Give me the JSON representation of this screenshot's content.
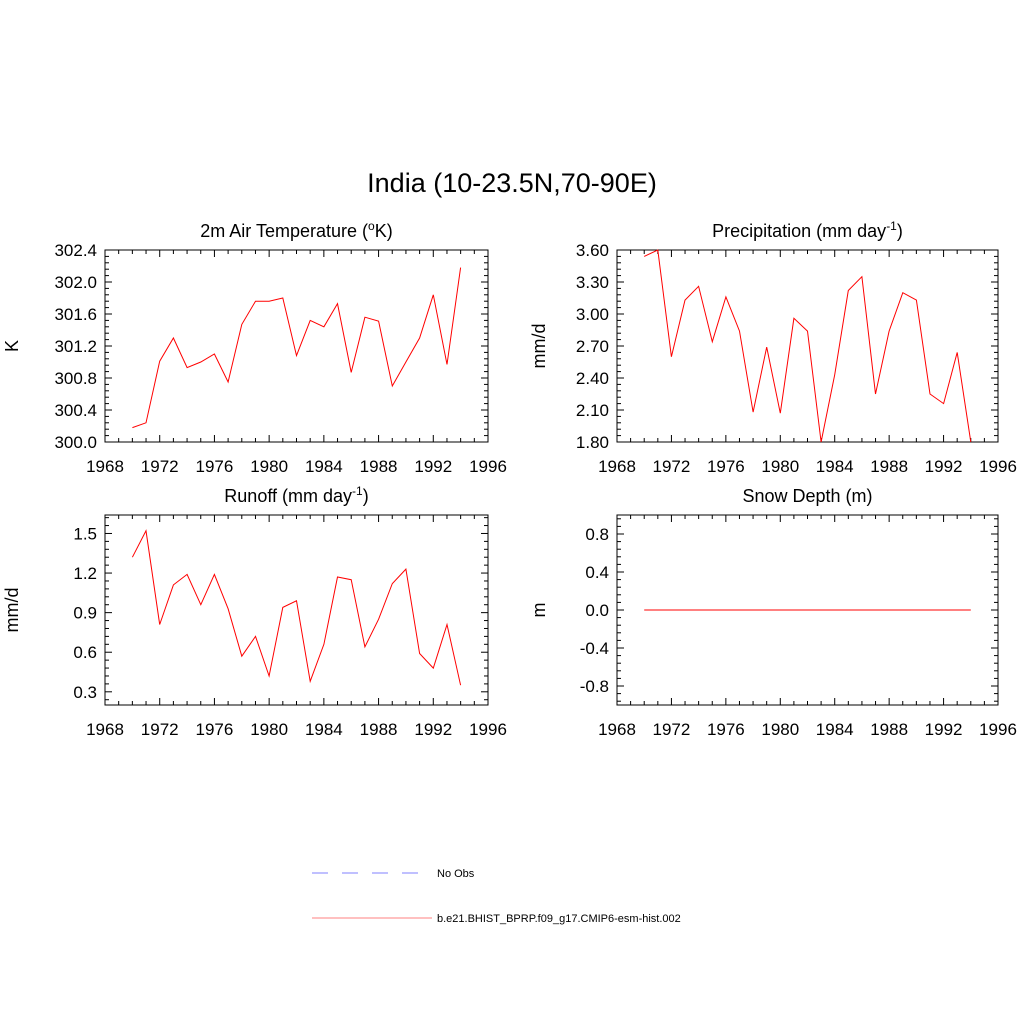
{
  "title": "India (10-23.5N,70-90E)",
  "colors": {
    "model": "#ff0000",
    "obs": "#9a9aff",
    "axis": "#000000"
  },
  "legend": {
    "obs_label": "No Obs",
    "model_label": "b.e21.BHIST_BPRP.f09_g17.CMIP6-esm-hist.002"
  },
  "chart_data": [
    {
      "type": "line",
      "title": "2m Air Temperature (°K)",
      "title_text": "2m Air Temperature (",
      "title_sup": "o",
      "title_after": "K)",
      "ylabel": "K",
      "xlim": [
        1968,
        1996
      ],
      "ylim": [
        300.0,
        302.4
      ],
      "xticks": [
        1968,
        1972,
        1976,
        1980,
        1984,
        1988,
        1992,
        1996
      ],
      "yticks": [
        "300.0",
        "300.4",
        "300.8",
        "301.2",
        "301.6",
        "302.0",
        "302.4"
      ],
      "x": [
        1970,
        1971,
        1972,
        1973,
        1974,
        1975,
        1976,
        1977,
        1978,
        1979,
        1980,
        1981,
        1982,
        1983,
        1984,
        1985,
        1986,
        1987,
        1988,
        1989,
        1990,
        1991,
        1992,
        1993,
        1994
      ],
      "series": [
        {
          "name": "b.e21.BHIST_BPRP.f09_g17.CMIP6-esm-hist.002",
          "values": [
            300.18,
            300.24,
            301.01,
            301.3,
            300.93,
            301.0,
            301.1,
            300.75,
            301.47,
            301.76,
            301.76,
            301.8,
            301.08,
            301.52,
            301.44,
            301.73,
            300.87,
            301.56,
            301.51,
            300.7,
            301.0,
            301.3,
            301.84,
            300.97,
            302.18
          ]
        }
      ]
    },
    {
      "type": "line",
      "title": "Precipitation (mm day-1)",
      "title_text": "Precipitation (mm day",
      "title_sup": "-1",
      "title_after": ")",
      "ylabel": "mm/d",
      "xlim": [
        1968,
        1996
      ],
      "ylim": [
        1.8,
        3.6
      ],
      "xticks": [
        1968,
        1972,
        1976,
        1980,
        1984,
        1988,
        1992,
        1996
      ],
      "yticks": [
        "1.80",
        "2.10",
        "2.40",
        "2.70",
        "3.00",
        "3.30",
        "3.60"
      ],
      "x": [
        1970,
        1971,
        1972,
        1973,
        1974,
        1975,
        1976,
        1977,
        1978,
        1979,
        1980,
        1981,
        1982,
        1983,
        1984,
        1985,
        1986,
        1987,
        1988,
        1989,
        1990,
        1991,
        1992,
        1993,
        1994
      ],
      "series": [
        {
          "name": "b.e21.BHIST_BPRP.f09_g17.CMIP6-esm-hist.002",
          "values": [
            3.54,
            3.6,
            2.6,
            3.13,
            3.26,
            2.74,
            3.16,
            2.84,
            2.08,
            2.69,
            2.07,
            2.96,
            2.84,
            1.8,
            2.43,
            3.22,
            3.35,
            2.25,
            2.84,
            3.2,
            3.13,
            2.25,
            2.16,
            2.64,
            1.8
          ]
        }
      ]
    },
    {
      "type": "line",
      "title": "Runoff (mm day-1)",
      "title_text": "Runoff (mm day",
      "title_sup": "-1",
      "title_after": ")",
      "ylabel": "mm/d",
      "xlim": [
        1968,
        1996
      ],
      "ylim": [
        0.2,
        1.64
      ],
      "xticks": [
        1968,
        1972,
        1976,
        1980,
        1984,
        1988,
        1992,
        1996
      ],
      "yticks": [
        "0.3",
        "0.6",
        "0.9",
        "1.2",
        "1.5"
      ],
      "x": [
        1970,
        1971,
        1972,
        1973,
        1974,
        1975,
        1976,
        1977,
        1978,
        1979,
        1980,
        1981,
        1982,
        1983,
        1984,
        1985,
        1986,
        1987,
        1988,
        1989,
        1990,
        1991,
        1992,
        1993,
        1994
      ],
      "series": [
        {
          "name": "b.e21.BHIST_BPRP.f09_g17.CMIP6-esm-hist.002",
          "values": [
            1.32,
            1.52,
            0.81,
            1.11,
            1.19,
            0.96,
            1.19,
            0.93,
            0.57,
            0.72,
            0.42,
            0.94,
            0.99,
            0.38,
            0.66,
            1.17,
            1.15,
            0.64,
            0.85,
            1.12,
            1.23,
            0.59,
            0.48,
            0.81,
            0.35
          ]
        }
      ]
    },
    {
      "type": "line",
      "title": "Snow Depth (m)",
      "title_text": "Snow Depth (m)",
      "title_sup": "",
      "title_after": "",
      "ylabel": "m",
      "xlim": [
        1968,
        1996
      ],
      "ylim": [
        -1.0,
        1.0
      ],
      "xticks": [
        1968,
        1972,
        1976,
        1980,
        1984,
        1988,
        1992,
        1996
      ],
      "yticks": [
        "-0.8",
        "-0.4",
        "0.0",
        "0.4",
        "0.8"
      ],
      "x": [
        1970,
        1971,
        1972,
        1973,
        1974,
        1975,
        1976,
        1977,
        1978,
        1979,
        1980,
        1981,
        1982,
        1983,
        1984,
        1985,
        1986,
        1987,
        1988,
        1989,
        1990,
        1991,
        1992,
        1993,
        1994
      ],
      "series": [
        {
          "name": "b.e21.BHIST_BPRP.f09_g17.CMIP6-esm-hist.002",
          "values": [
            0,
            0,
            0,
            0,
            0,
            0,
            0,
            0,
            0,
            0,
            0,
            0,
            0,
            0,
            0,
            0,
            0,
            0,
            0,
            0,
            0,
            0,
            0,
            0,
            0
          ]
        }
      ]
    }
  ]
}
